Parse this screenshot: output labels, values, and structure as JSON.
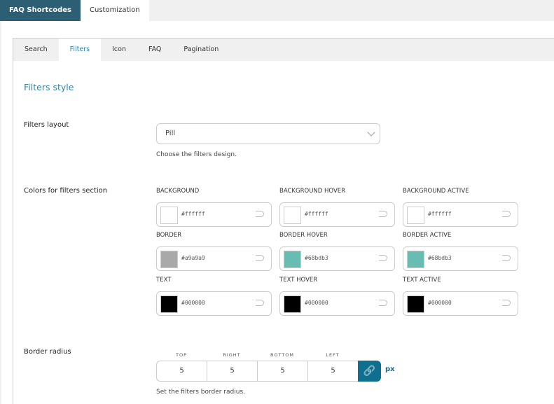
{
  "top_tabs": [
    {
      "label": "FAQ Shortcodes",
      "active": true
    },
    {
      "label": "Customization",
      "active": false
    }
  ],
  "sub_tabs": [
    {
      "label": "Search"
    },
    {
      "label": "Filters",
      "active": true
    },
    {
      "label": "Icon"
    },
    {
      "label": "FAQ"
    },
    {
      "label": "Pagination"
    }
  ],
  "section_title": "Filters style",
  "filters_layout": {
    "label": "Filters layout",
    "value": "Pill",
    "help": "Choose the filters design."
  },
  "colors": {
    "label": "Colors for filters section",
    "items": [
      {
        "label": "BACKGROUND",
        "value": "#ffffff"
      },
      {
        "label": "BACKGROUND HOVER",
        "value": "#ffffff"
      },
      {
        "label": "BACKGROUND ACTIVE",
        "value": "#ffffff"
      },
      {
        "label": "BORDER",
        "value": "#a9a9a9"
      },
      {
        "label": "BORDER HOVER",
        "value": "#68bdb3"
      },
      {
        "label": "BORDER ACTIVE",
        "value": "#68bdb3"
      },
      {
        "label": "TEXT",
        "value": "#000000"
      },
      {
        "label": "TEXT HOVER",
        "value": "#000000"
      },
      {
        "label": "TEXT ACTIVE",
        "value": "#000000"
      }
    ]
  },
  "border_radius": {
    "label": "Border radius",
    "fields": [
      {
        "label": "TOP",
        "value": "5"
      },
      {
        "label": "RIGHT",
        "value": "5"
      },
      {
        "label": "BOTTOM",
        "value": "5"
      },
      {
        "label": "LEFT",
        "value": "5"
      }
    ],
    "unit": "px",
    "link_icon": "link-icon",
    "help": "Set the filters border radius."
  },
  "accent": "#0f6f8e"
}
